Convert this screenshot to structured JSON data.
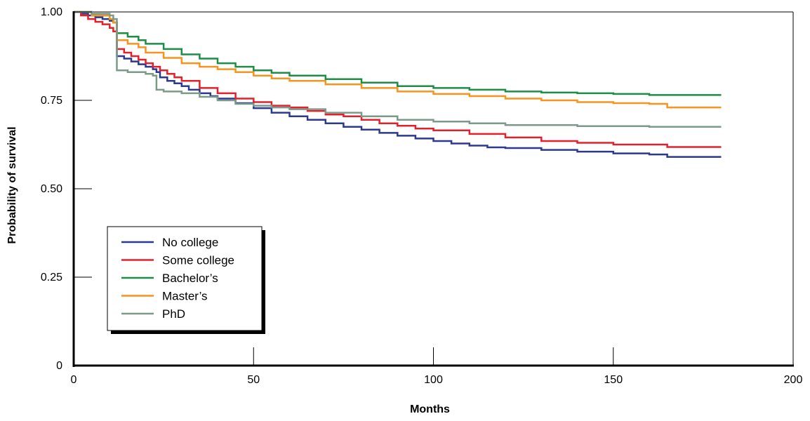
{
  "chart_data": {
    "type": "line",
    "title": "",
    "xlabel": "Months",
    "ylabel": "Probability of survival",
    "xlim": [
      0,
      200
    ],
    "ylim": [
      0,
      1
    ],
    "x_ticks": [
      0,
      50,
      100,
      150,
      200
    ],
    "x_tick_labels": [
      "0",
      "50",
      "100",
      "150",
      "200"
    ],
    "y_ticks": [
      0,
      0.25,
      0.5,
      0.75,
      1.0
    ],
    "y_tick_labels": [
      "0",
      "0.25",
      "0.50",
      "0.75",
      "1.00"
    ],
    "grid": false,
    "legend_position": "bottom-left",
    "series": [
      {
        "name": "No college",
        "color": "#2b3990",
        "x": [
          0,
          2,
          4,
          6,
          8,
          10,
          11,
          12,
          14,
          16,
          18,
          20,
          22,
          23,
          24,
          26,
          28,
          30,
          32,
          35,
          38,
          40,
          45,
          50,
          55,
          60,
          65,
          70,
          75,
          80,
          85,
          90,
          95,
          100,
          105,
          110,
          115,
          120,
          130,
          140,
          150,
          160,
          165,
          180
        ],
        "y": [
          1.0,
          0.995,
          0.99,
          0.985,
          0.98,
          0.975,
          0.97,
          0.875,
          0.868,
          0.86,
          0.852,
          0.845,
          0.838,
          0.83,
          0.815,
          0.805,
          0.798,
          0.79,
          0.78,
          0.77,
          0.762,
          0.755,
          0.742,
          0.728,
          0.715,
          0.705,
          0.695,
          0.685,
          0.675,
          0.667,
          0.658,
          0.65,
          0.642,
          0.635,
          0.628,
          0.622,
          0.617,
          0.615,
          0.61,
          0.605,
          0.6,
          0.597,
          0.59,
          0.59
        ]
      },
      {
        "name": "Some college",
        "color": "#e4202b",
        "x": [
          0,
          2,
          4,
          6,
          8,
          10,
          11,
          12,
          14,
          16,
          18,
          20,
          22,
          24,
          26,
          28,
          30,
          35,
          40,
          45,
          50,
          55,
          60,
          65,
          70,
          75,
          80,
          85,
          90,
          95,
          100,
          110,
          120,
          130,
          140,
          150,
          165,
          180
        ],
        "y": [
          1.0,
          0.99,
          0.98,
          0.972,
          0.965,
          0.955,
          0.945,
          0.895,
          0.885,
          0.875,
          0.865,
          0.855,
          0.845,
          0.835,
          0.825,
          0.815,
          0.805,
          0.785,
          0.77,
          0.755,
          0.745,
          0.735,
          0.73,
          0.72,
          0.71,
          0.705,
          0.695,
          0.685,
          0.678,
          0.67,
          0.665,
          0.655,
          0.645,
          0.635,
          0.63,
          0.625,
          0.618,
          0.618
        ]
      },
      {
        "name": "Bachelor’s",
        "color": "#1d8e45",
        "x": [
          0,
          5,
          10,
          11,
          12,
          15,
          18,
          20,
          25,
          30,
          35,
          40,
          45,
          50,
          55,
          60,
          70,
          80,
          90,
          100,
          110,
          120,
          130,
          140,
          150,
          160,
          180
        ],
        "y": [
          1.0,
          0.99,
          0.98,
          0.97,
          0.94,
          0.93,
          0.92,
          0.91,
          0.895,
          0.88,
          0.868,
          0.855,
          0.845,
          0.835,
          0.828,
          0.82,
          0.81,
          0.8,
          0.79,
          0.785,
          0.78,
          0.775,
          0.772,
          0.77,
          0.768,
          0.765,
          0.765
        ]
      },
      {
        "name": "Master’s",
        "color": "#f7941d",
        "x": [
          0,
          5,
          10,
          11,
          12,
          15,
          18,
          20,
          25,
          30,
          35,
          40,
          45,
          50,
          55,
          60,
          70,
          80,
          90,
          100,
          110,
          120,
          130,
          140,
          150,
          160,
          165,
          180
        ],
        "y": [
          1.0,
          0.99,
          0.98,
          0.97,
          0.92,
          0.91,
          0.9,
          0.885,
          0.87,
          0.855,
          0.845,
          0.838,
          0.83,
          0.82,
          0.812,
          0.805,
          0.795,
          0.785,
          0.775,
          0.768,
          0.762,
          0.755,
          0.75,
          0.745,
          0.742,
          0.74,
          0.73,
          0.73
        ]
      },
      {
        "name": "PhD",
        "color": "#7b9a8a",
        "x": [
          0,
          5,
          10,
          11,
          12,
          15,
          20,
          22,
          23,
          25,
          30,
          35,
          40,
          45,
          50,
          55,
          60,
          70,
          80,
          90,
          100,
          110,
          120,
          140,
          160,
          180
        ],
        "y": [
          1.0,
          0.995,
          0.99,
          0.98,
          0.835,
          0.83,
          0.825,
          0.82,
          0.78,
          0.775,
          0.77,
          0.76,
          0.75,
          0.74,
          0.735,
          0.73,
          0.725,
          0.715,
          0.705,
          0.695,
          0.69,
          0.685,
          0.68,
          0.677,
          0.675,
          0.675
        ]
      }
    ]
  }
}
